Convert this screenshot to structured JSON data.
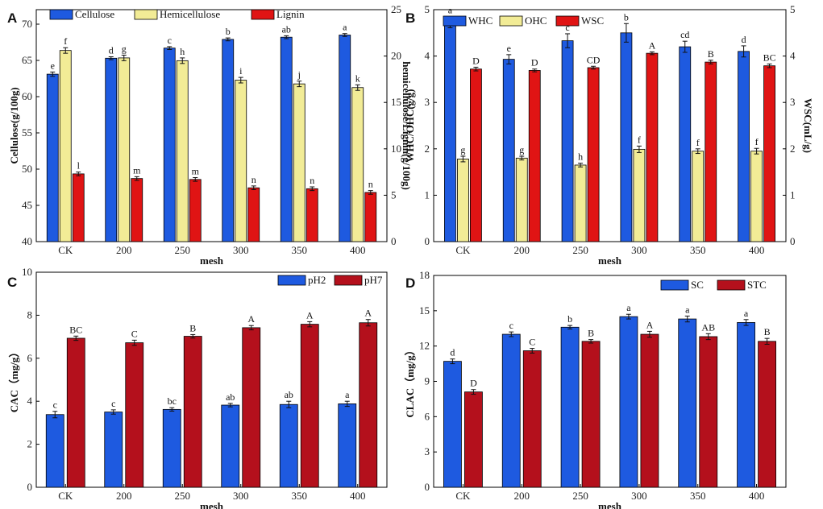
{
  "chart_data": [
    {
      "panel": "A",
      "type": "bar",
      "categories": [
        "CK",
        "200",
        "250",
        "300",
        "350",
        "400"
      ],
      "xlabel": "mesh",
      "ylabel": "Cellulose(g/100g)",
      "ylabel_right": "hemicellulose/Lignin(g/100g)",
      "ylim": [
        40,
        72
      ],
      "yticks": [
        40,
        45,
        50,
        55,
        60,
        65,
        70
      ],
      "ylim_right": [
        0,
        25
      ],
      "yticks_right": [
        0,
        5,
        10,
        15,
        20,
        25
      ],
      "series": [
        {
          "name": "Cellulose",
          "color": "#1E5AE0",
          "axis": "left",
          "values": [
            63.1,
            65.3,
            66.7,
            67.9,
            68.2,
            68.5
          ],
          "errors": [
            0.3,
            0.2,
            0.2,
            0.2,
            0.2,
            0.2
          ],
          "labels": [
            "e",
            "d",
            "c",
            "b",
            "ab",
            "a"
          ]
        },
        {
          "name": "Hemicellulose",
          "color": "#F2EC96",
          "axis": "right",
          "values": [
            20.6,
            19.8,
            19.5,
            17.4,
            17.0,
            16.6
          ],
          "errors": [
            0.3,
            0.3,
            0.3,
            0.3,
            0.3,
            0.3
          ],
          "labels": [
            "f",
            "g",
            "h",
            "i",
            "j",
            "k"
          ]
        },
        {
          "name": "Lignin",
          "color": "#E01414",
          "axis": "right",
          "values": [
            7.3,
            6.8,
            6.7,
            5.8,
            5.7,
            5.3
          ],
          "errors": [
            0.2,
            0.2,
            0.2,
            0.2,
            0.2,
            0.2
          ],
          "labels": [
            "l",
            "m",
            "m",
            "n",
            "n",
            "n"
          ]
        }
      ]
    },
    {
      "panel": "B",
      "type": "bar",
      "categories": [
        "CK",
        "200",
        "250",
        "300",
        "350",
        "400"
      ],
      "xlabel": "mesh",
      "ylabel": "WHC/OHC(g/g)",
      "ylabel_right": "WSC(mL/g)",
      "ylim": [
        0,
        5
      ],
      "yticks": [
        0,
        1,
        2,
        3,
        4,
        5
      ],
      "ylim_right": [
        0,
        5
      ],
      "yticks_right": [
        0,
        1,
        2,
        3,
        4,
        5
      ],
      "series": [
        {
          "name": "WHC",
          "color": "#1E5AE0",
          "axis": "left",
          "values": [
            4.73,
            3.93,
            4.33,
            4.5,
            4.2,
            4.1
          ],
          "errors": [
            0.12,
            0.1,
            0.15,
            0.2,
            0.12,
            0.12
          ],
          "labels": [
            "a",
            "e",
            "c",
            "b",
            "cd",
            "d"
          ]
        },
        {
          "name": "OHC",
          "color": "#F2EC96",
          "axis": "left",
          "values": [
            1.78,
            1.8,
            1.65,
            1.99,
            1.95,
            1.95
          ],
          "errors": [
            0.06,
            0.04,
            0.04,
            0.07,
            0.05,
            0.06
          ],
          "labels": [
            "g",
            "g",
            "h",
            "f",
            "f",
            "f"
          ]
        },
        {
          "name": "WSC",
          "color": "#E01414",
          "axis": "right",
          "values": [
            3.72,
            3.69,
            3.75,
            4.06,
            3.87,
            3.79
          ],
          "errors": [
            0.04,
            0.03,
            0.03,
            0.03,
            0.04,
            0.04
          ],
          "labels": [
            "D",
            "D",
            "CD",
            "A",
            "B",
            "BC"
          ]
        }
      ]
    },
    {
      "panel": "C",
      "type": "bar",
      "categories": [
        "CK",
        "200",
        "250",
        "300",
        "350",
        "400"
      ],
      "xlabel": "mesh",
      "ylabel": "CAC（mg/g）",
      "ylim": [
        0,
        10
      ],
      "yticks": [
        0,
        2,
        4,
        6,
        8,
        10
      ],
      "series": [
        {
          "name": "pH2",
          "color": "#1E5AE0",
          "values": [
            3.38,
            3.5,
            3.62,
            3.82,
            3.85,
            3.88
          ],
          "errors": [
            0.15,
            0.1,
            0.08,
            0.08,
            0.15,
            0.12
          ],
          "labels": [
            "c",
            "c",
            "bc",
            "ab",
            "ab",
            "a"
          ]
        },
        {
          "name": "pH7",
          "color": "#B4101C",
          "values": [
            6.93,
            6.72,
            7.02,
            7.42,
            7.58,
            7.65
          ],
          "errors": [
            0.1,
            0.12,
            0.08,
            0.1,
            0.12,
            0.15
          ],
          "labels": [
            "BC",
            "C",
            "B",
            "A",
            "A",
            "A"
          ]
        }
      ]
    },
    {
      "panel": "D",
      "type": "bar",
      "categories": [
        "CK",
        "200",
        "250",
        "300",
        "350",
        "400"
      ],
      "xlabel": "mesh",
      "ylabel": "CLAC（mg/g）",
      "ylim": [
        0,
        18
      ],
      "yticks": [
        0,
        3,
        6,
        9,
        12,
        15,
        18
      ],
      "series": [
        {
          "name": "SC",
          "color": "#1E5AE0",
          "values": [
            10.7,
            13.0,
            13.6,
            14.5,
            14.3,
            14.0
          ],
          "errors": [
            0.2,
            0.2,
            0.15,
            0.2,
            0.25,
            0.25
          ],
          "labels": [
            "d",
            "c",
            "b",
            "a",
            "a",
            "a"
          ]
        },
        {
          "name": "STC",
          "color": "#B4101C",
          "values": [
            8.1,
            11.6,
            12.4,
            13.0,
            12.8,
            12.4
          ],
          "errors": [
            0.2,
            0.2,
            0.15,
            0.25,
            0.25,
            0.25
          ],
          "labels": [
            "D",
            "C",
            "B",
            "A",
            "AB",
            "B"
          ]
        }
      ]
    }
  ]
}
